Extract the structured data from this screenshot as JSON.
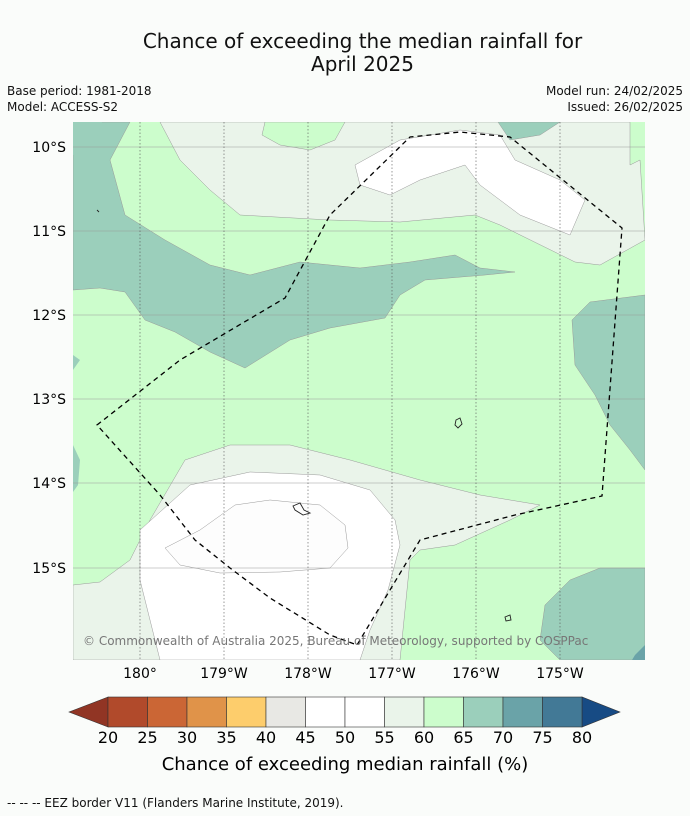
{
  "title_line1": "Chance of exceeding the median rainfall for",
  "title_line2": "April 2025",
  "base_period": "Base period: 1981-2018",
  "model": "Model: ACCESS-S2",
  "model_run": "Model run: 24/02/2025",
  "issued": "Issued: 26/02/2025",
  "lat_labels": [
    "10°S",
    "11°S",
    "12°S",
    "13°S",
    "14°S",
    "15°S"
  ],
  "lon_labels": [
    "180°",
    "179°W",
    "178°W",
    "177°W",
    "176°W",
    "175°W"
  ],
  "copyright": "© Commonwealth of Australia 2025, Bureau of Meteorology, supported by COSPPac",
  "colorbar": {
    "ticks": [
      "20",
      "25",
      "30",
      "35",
      "40",
      "45",
      "50",
      "55",
      "60",
      "65",
      "70",
      "75",
      "80"
    ],
    "colors": [
      "#b14a2b",
      "#cb6635",
      "#e09349",
      "#fdcd6c",
      "#e8e8e4",
      "#ffffff",
      "#ffffff",
      "#eaf4ea",
      "#ccfdcc",
      "#9bcfbb",
      "#6aa3a8",
      "#427996"
    ],
    "under_color": "#913524",
    "over_color": "#174b84",
    "label": "Chance of exceeding median rainfall (%)"
  },
  "legend_note": "--  --  -- EEZ border V11 (Flanders Marine Institute, 2019)."
}
